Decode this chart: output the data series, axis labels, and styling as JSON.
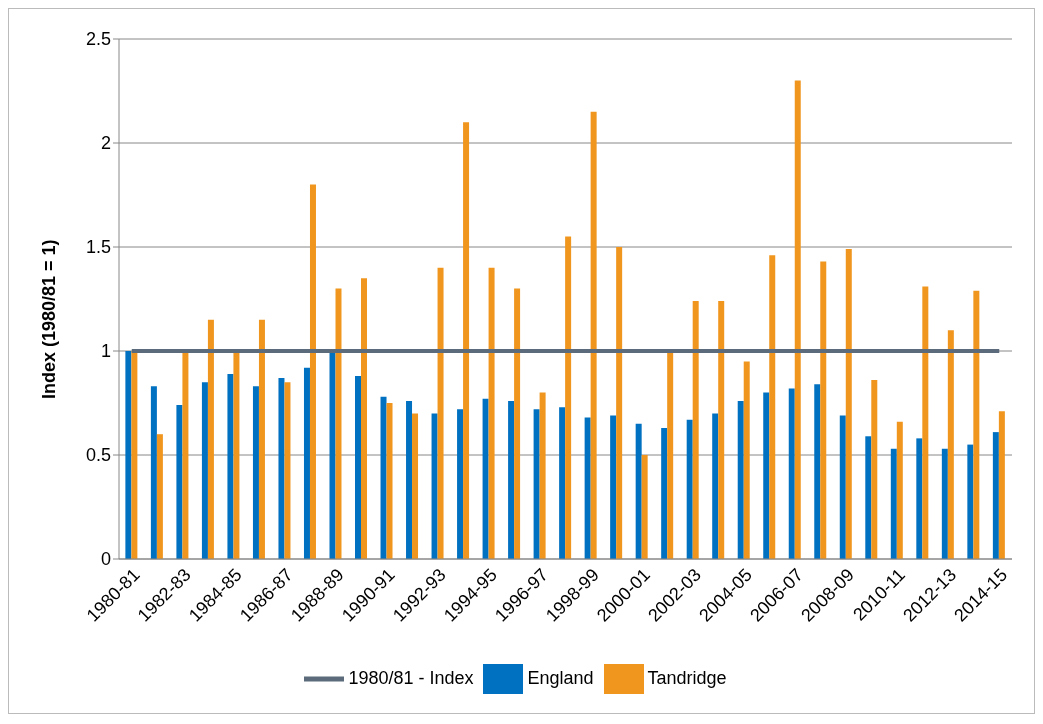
{
  "chart_data": {
    "type": "bar",
    "ylabel": "Index (1980/81 = 1)",
    "categories": [
      "1980-81",
      null,
      "1982-83",
      null,
      "1984-85",
      null,
      "1986-87",
      null,
      "1988-89",
      null,
      "1990-91",
      null,
      "1992-93",
      null,
      "1994-95",
      null,
      "1996-97",
      null,
      "1998-99",
      null,
      "2000-01",
      null,
      "2002-03",
      null,
      "2004-05",
      null,
      "2006-07",
      null,
      "2008-09",
      null,
      "2010-11",
      null,
      "2012-13",
      null,
      "2014-15"
    ],
    "series": [
      {
        "name": "England",
        "color": "#0070c0",
        "values": [
          1.0,
          0.83,
          0.74,
          0.85,
          0.89,
          0.83,
          0.87,
          0.92,
          0.99,
          0.88,
          0.78,
          0.76,
          0.7,
          0.72,
          0.77,
          0.76,
          0.72,
          0.73,
          0.68,
          0.69,
          0.65,
          0.63,
          0.67,
          0.7,
          0.76,
          0.8,
          0.82,
          0.84,
          0.69,
          0.59,
          0.53,
          0.58,
          0.53,
          0.55,
          0.61
        ]
      },
      {
        "name": "Tandridge",
        "color": "#f0961e",
        "values": [
          1.0,
          0.6,
          1.0,
          1.15,
          1.0,
          1.15,
          0.85,
          1.8,
          1.3,
          1.35,
          0.75,
          0.7,
          1.4,
          2.1,
          1.4,
          1.3,
          0.8,
          1.55,
          2.15,
          1.5,
          0.5,
          1.0,
          1.24,
          1.24,
          0.95,
          1.46,
          2.3,
          1.43,
          1.49,
          0.86,
          0.66,
          1.31,
          1.1,
          1.29,
          0.71
        ]
      },
      {
        "name": "1980/81 - Index",
        "type": "line",
        "color": "#5b6b7b",
        "values": [
          1,
          1,
          1,
          1,
          1,
          1,
          1,
          1,
          1,
          1,
          1,
          1,
          1,
          1,
          1,
          1,
          1,
          1,
          1,
          1,
          1,
          1,
          1,
          1,
          1,
          1,
          1,
          1,
          1,
          1,
          1,
          1,
          1,
          1,
          1
        ]
      }
    ],
    "ylim": [
      0,
      2.5
    ],
    "yticks": [
      0,
      0.5,
      1,
      1.5,
      2,
      2.5
    ],
    "grid": "y",
    "legend": "bottom",
    "marker": "none"
  }
}
